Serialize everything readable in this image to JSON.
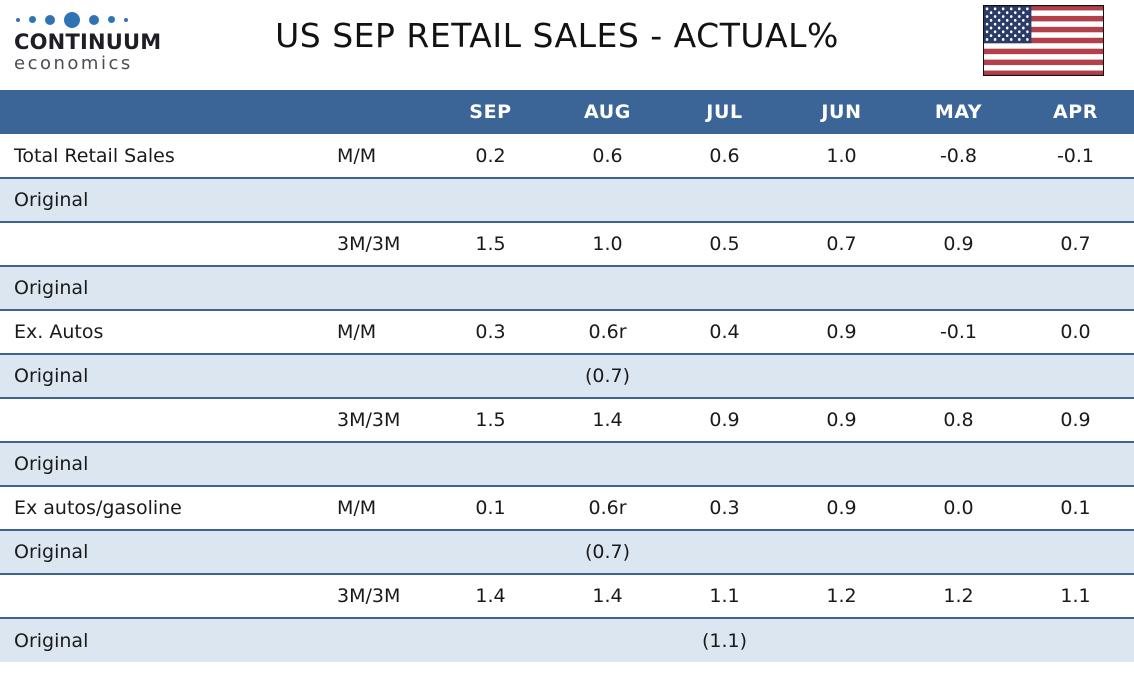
{
  "brand": {
    "name": "CONTINUUM",
    "tagline": "economics",
    "dot_color": "#2E74B5"
  },
  "header": {
    "title": "US SEP RETAIL SALES - ACTUAL%"
  },
  "colors": {
    "table_header_bg": "#3A6596",
    "shaded_row_bg": "#DCE6F1",
    "row_border_blue": "#3A6596",
    "flag_red": "#B1404A",
    "flag_blue": "#2B3B67",
    "text": "#1A1A1A"
  },
  "icons": {
    "us_flag": "us-flag-icon",
    "logo_dots": "continuum-dots-logo"
  },
  "chart_data": {
    "type": "table",
    "title": "US SEP RETAIL SALES - ACTUAL%",
    "columns": [
      "",
      "",
      "SEP",
      "AUG",
      "JUL",
      "JUN",
      "MAY",
      "APR"
    ],
    "rows": [
      {
        "label": "Total Retail Sales",
        "period": "M/M",
        "values": [
          "0.2",
          "0.6",
          "0.6",
          "1.0",
          "-0.8",
          "-0.1"
        ]
      },
      {
        "label": "Original",
        "period": "",
        "values": [
          "",
          "",
          "",
          "",
          "",
          ""
        ]
      },
      {
        "label": "",
        "period": "3M/3M",
        "values": [
          "1.5",
          "1.0",
          "0.5",
          "0.7",
          "0.9",
          "0.7"
        ]
      },
      {
        "label": "Original",
        "period": "",
        "values": [
          "",
          "",
          "",
          "",
          "",
          ""
        ]
      },
      {
        "label": "Ex. Autos",
        "period": "M/M",
        "values": [
          "0.3",
          "0.6r",
          "0.4",
          "0.9",
          "-0.1",
          "0.0"
        ]
      },
      {
        "label": "Original",
        "period": "",
        "values": [
          "",
          "(0.7)",
          "",
          "",
          "",
          ""
        ]
      },
      {
        "label": "",
        "period": "3M/3M",
        "values": [
          "1.5",
          "1.4",
          "0.9",
          "0.9",
          "0.8",
          "0.9"
        ]
      },
      {
        "label": "Original",
        "period": "",
        "values": [
          "",
          "",
          "",
          "",
          "",
          ""
        ]
      },
      {
        "label": "Ex autos/gasoline",
        "period": "M/M",
        "values": [
          "0.1",
          "0.6r",
          "0.3",
          "0.9",
          "0.0",
          "0.1"
        ]
      },
      {
        "label": "Original",
        "period": "",
        "values": [
          "",
          "(0.7)",
          "",
          "",
          "",
          ""
        ]
      },
      {
        "label": "",
        "period": "3M/3M",
        "values": [
          "1.4",
          "1.4",
          "1.1",
          "1.2",
          "1.2",
          "1.1"
        ]
      },
      {
        "label": "Original",
        "period": "",
        "values": [
          "",
          "",
          "(1.1)",
          "",
          "",
          ""
        ]
      }
    ]
  }
}
